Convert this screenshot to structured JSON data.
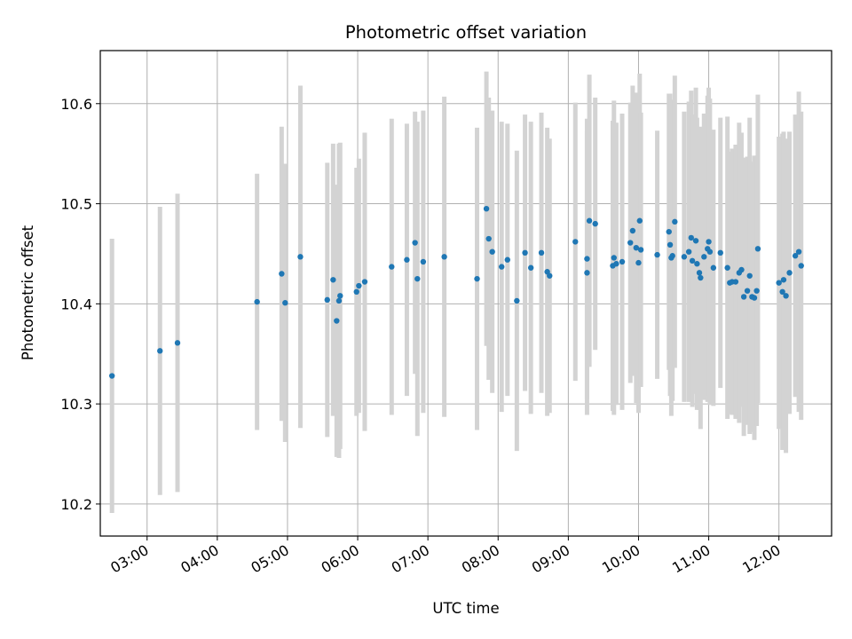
{
  "chart_data": {
    "type": "scatter",
    "title": "Photometric offset variation",
    "xlabel": "UTC time",
    "ylabel": "Photometric offset",
    "x_axis_type": "time",
    "xlim": [
      "02:20",
      "12:45"
    ],
    "ylim": [
      10.168,
      10.653
    ],
    "x_ticks": [
      "03:00",
      "04:00",
      "05:00",
      "06:00",
      "07:00",
      "08:00",
      "09:00",
      "10:00",
      "11:00",
      "12:00"
    ],
    "y_ticks": [
      "10.2",
      "10.3",
      "10.4",
      "10.5",
      "10.6"
    ],
    "grid": true,
    "legend": "none",
    "colors": {
      "points": "#1f77b4",
      "error_bars": "#d3d3d3",
      "grid": "#b0b0b0"
    },
    "points": [
      {
        "x": "02:30",
        "y": 10.328,
        "err": 0.137
      },
      {
        "x": "03:11",
        "y": 10.353,
        "err": 0.144
      },
      {
        "x": "03:26",
        "y": 10.361,
        "err": 0.149
      },
      {
        "x": "04:34",
        "y": 10.402,
        "err": 0.128
      },
      {
        "x": "04:55",
        "y": 10.43,
        "err": 0.147
      },
      {
        "x": "04:58",
        "y": 10.401,
        "err": 0.139
      },
      {
        "x": "05:11",
        "y": 10.447,
        "err": 0.171
      },
      {
        "x": "05:34",
        "y": 10.404,
        "err": 0.137
      },
      {
        "x": "05:39",
        "y": 10.424,
        "err": 0.136
      },
      {
        "x": "05:42",
        "y": 10.383,
        "err": 0.136
      },
      {
        "x": "05:44",
        "y": 10.403,
        "err": 0.157
      },
      {
        "x": "05:45",
        "y": 10.408,
        "err": 0.153
      },
      {
        "x": "05:59",
        "y": 10.412,
        "err": 0.124
      },
      {
        "x": "06:01",
        "y": 10.418,
        "err": 0.127
      },
      {
        "x": "06:06",
        "y": 10.422,
        "err": 0.149
      },
      {
        "x": "06:29",
        "y": 10.437,
        "err": 0.148
      },
      {
        "x": "06:42",
        "y": 10.444,
        "err": 0.136
      },
      {
        "x": "06:49",
        "y": 10.461,
        "err": 0.131
      },
      {
        "x": "06:51",
        "y": 10.425,
        "err": 0.157
      },
      {
        "x": "06:56",
        "y": 10.442,
        "err": 0.151
      },
      {
        "x": "07:14",
        "y": 10.447,
        "err": 0.16
      },
      {
        "x": "07:42",
        "y": 10.425,
        "err": 0.151
      },
      {
        "x": "07:50",
        "y": 10.495,
        "err": 0.137
      },
      {
        "x": "07:52",
        "y": 10.465,
        "err": 0.141
      },
      {
        "x": "07:55",
        "y": 10.452,
        "err": 0.141
      },
      {
        "x": "08:03",
        "y": 10.437,
        "err": 0.145
      },
      {
        "x": "08:08",
        "y": 10.444,
        "err": 0.136
      },
      {
        "x": "08:16",
        "y": 10.403,
        "err": 0.15
      },
      {
        "x": "08:23",
        "y": 10.451,
        "err": 0.138
      },
      {
        "x": "08:28",
        "y": 10.436,
        "err": 0.146
      },
      {
        "x": "08:37",
        "y": 10.451,
        "err": 0.14
      },
      {
        "x": "08:42",
        "y": 10.432,
        "err": 0.144
      },
      {
        "x": "08:44",
        "y": 10.428,
        "err": 0.137
      },
      {
        "x": "09:06",
        "y": 10.462,
        "err": 0.139
      },
      {
        "x": "09:16",
        "y": 10.431,
        "err": 0.142
      },
      {
        "x": "09:16",
        "y": 10.445,
        "err": 0.14
      },
      {
        "x": "09:18",
        "y": 10.483,
        "err": 0.146
      },
      {
        "x": "09:23",
        "y": 10.48,
        "err": 0.126
      },
      {
        "x": "09:38",
        "y": 10.438,
        "err": 0.145
      },
      {
        "x": "09:39",
        "y": 10.446,
        "err": 0.157
      },
      {
        "x": "09:41",
        "y": 10.44,
        "err": 0.141
      },
      {
        "x": "09:46",
        "y": 10.442,
        "err": 0.148
      },
      {
        "x": "09:53",
        "y": 10.461,
        "err": 0.14
      },
      {
        "x": "09:55",
        "y": 10.473,
        "err": 0.145
      },
      {
        "x": "09:58",
        "y": 10.456,
        "err": 0.155
      },
      {
        "x": "10:00",
        "y": 10.441,
        "err": 0.15
      },
      {
        "x": "10:01",
        "y": 10.483,
        "err": 0.147
      },
      {
        "x": "10:02",
        "y": 10.454,
        "err": 0.137
      },
      {
        "x": "10:16",
        "y": 10.449,
        "err": 0.124
      },
      {
        "x": "10:26",
        "y": 10.472,
        "err": 0.138
      },
      {
        "x": "10:27",
        "y": 10.459,
        "err": 0.151
      },
      {
        "x": "10:28",
        "y": 10.446,
        "err": 0.158
      },
      {
        "x": "10:29",
        "y": 10.448,
        "err": 0.145
      },
      {
        "x": "10:31",
        "y": 10.482,
        "err": 0.146
      },
      {
        "x": "10:39",
        "y": 10.447,
        "err": 0.145
      },
      {
        "x": "10:43",
        "y": 10.452,
        "err": 0.15
      },
      {
        "x": "10:45",
        "y": 10.466,
        "err": 0.147
      },
      {
        "x": "10:46",
        "y": 10.443,
        "err": 0.146
      },
      {
        "x": "10:49",
        "y": 10.463,
        "err": 0.153
      },
      {
        "x": "10:50",
        "y": 10.44,
        "err": 0.146
      },
      {
        "x": "10:52",
        "y": 10.431,
        "err": 0.137
      },
      {
        "x": "10:53",
        "y": 10.426,
        "err": 0.151
      },
      {
        "x": "10:56",
        "y": 10.447,
        "err": 0.143
      },
      {
        "x": "10:59",
        "y": 10.455,
        "err": 0.153
      },
      {
        "x": "11:00",
        "y": 10.462,
        "err": 0.154
      },
      {
        "x": "11:01",
        "y": 10.452,
        "err": 0.153
      },
      {
        "x": "11:04",
        "y": 10.436,
        "err": 0.138
      },
      {
        "x": "11:10",
        "y": 10.451,
        "err": 0.135
      },
      {
        "x": "11:16",
        "y": 10.436,
        "err": 0.151
      },
      {
        "x": "11:18",
        "y": 10.421,
        "err": 0.131
      },
      {
        "x": "11:20",
        "y": 10.422,
        "err": 0.133
      },
      {
        "x": "11:23",
        "y": 10.422,
        "err": 0.137
      },
      {
        "x": "11:26",
        "y": 10.431,
        "err": 0.15
      },
      {
        "x": "11:28",
        "y": 10.434,
        "err": 0.137
      },
      {
        "x": "11:30",
        "y": 10.407,
        "err": 0.139
      },
      {
        "x": "11:33",
        "y": 10.413,
        "err": 0.134
      },
      {
        "x": "11:35",
        "y": 10.428,
        "err": 0.158
      },
      {
        "x": "11:37",
        "y": 10.407,
        "err": 0.135
      },
      {
        "x": "11:39",
        "y": 10.406,
        "err": 0.142
      },
      {
        "x": "11:41",
        "y": 10.413,
        "err": 0.135
      },
      {
        "x": "11:42",
        "y": 10.455,
        "err": 0.154
      },
      {
        "x": "12:00",
        "y": 10.421,
        "err": 0.146
      },
      {
        "x": "12:03",
        "y": 10.412,
        "err": 0.158
      },
      {
        "x": "12:04",
        "y": 10.424,
        "err": 0.148
      },
      {
        "x": "12:06",
        "y": 10.408,
        "err": 0.157
      },
      {
        "x": "12:09",
        "y": 10.431,
        "err": 0.141
      },
      {
        "x": "12:14",
        "y": 10.448,
        "err": 0.141
      },
      {
        "x": "12:17",
        "y": 10.452,
        "err": 0.16
      },
      {
        "x": "12:19",
        "y": 10.438,
        "err": 0.154
      }
    ]
  }
}
